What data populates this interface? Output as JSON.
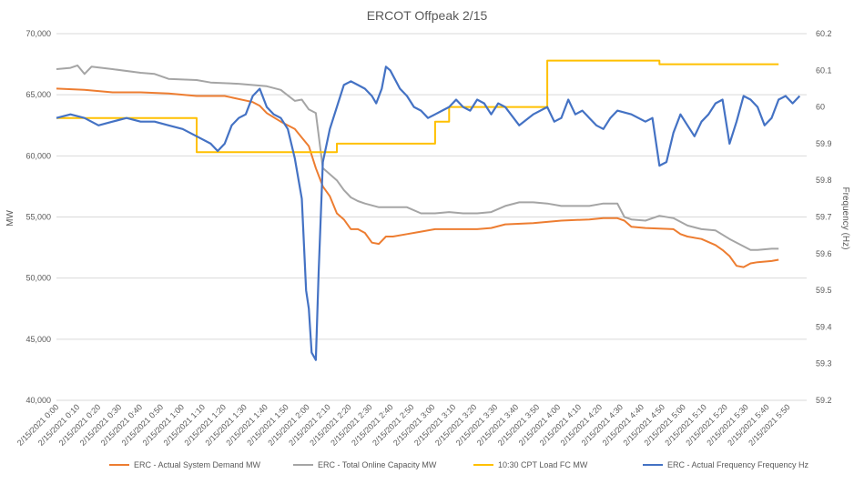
{
  "chart_data": {
    "type": "line",
    "title": "ERCOT Offpeak 2/15",
    "ylabel": "MW",
    "y2label": "Frequency (Hz)",
    "ylim": [
      40000,
      70000
    ],
    "y2lim": [
      59.2,
      60.2
    ],
    "grid": true,
    "legend_position": "bottom",
    "y_ticks": [
      "40,000",
      "45,000",
      "50,000",
      "55,000",
      "60,000",
      "65,000",
      "70,000"
    ],
    "y2_ticks": [
      "59.2",
      "59.3",
      "59.4",
      "59.5",
      "59.6",
      "59.7",
      "59.8",
      "59.9",
      "60",
      "60.1",
      "60.2"
    ],
    "categories": [
      "2/15/2021 0:00",
      "2/15/2021 0:10",
      "2/15/2021 0:20",
      "2/15/2021 0:30",
      "2/15/2021 0:40",
      "2/15/2021 0:50",
      "2/15/2021 1:00",
      "2/15/2021 1:10",
      "2/15/2021 1:20",
      "2/15/2021 1:30",
      "2/15/2021 1:40",
      "2/15/2021 1:50",
      "2/15/2021 2:00",
      "2/15/2021 2:10",
      "2/15/2021 2:20",
      "2/15/2021 2:30",
      "2/15/2021 2:40",
      "2/15/2021 2:50",
      "2/15/2021 3:00",
      "2/15/2021 3:10",
      "2/15/2021 3:20",
      "2/15/2021 3:30",
      "2/15/2021 3:40",
      "2/15/2021 3:50",
      "2/15/2021 4:00",
      "2/15/2021 4:10",
      "2/15/2021 4:20",
      "2/15/2021 4:30",
      "2/15/2021 4:40",
      "2/15/2021 4:50",
      "2/15/2021 5:00",
      "2/15/2021 5:10",
      "2/15/2021 5:20",
      "2/15/2021 5:30",
      "2/15/2021 5:40",
      "2/15/2021 5:50"
    ],
    "x_max_minutes": 359,
    "series": [
      {
        "name": "ERC - Actual System Demand MW",
        "axis": "left",
        "color": "#ED7D31",
        "points": [
          [
            0,
            65500
          ],
          [
            20,
            65400
          ],
          [
            40,
            65200
          ],
          [
            60,
            65200
          ],
          [
            80,
            65100
          ],
          [
            100,
            64900
          ],
          [
            120,
            64900
          ],
          [
            140,
            64400
          ],
          [
            145,
            64100
          ],
          [
            150,
            63500
          ],
          [
            160,
            62800
          ],
          [
            170,
            62200
          ],
          [
            175,
            61500
          ],
          [
            180,
            60800
          ],
          [
            185,
            59000
          ],
          [
            190,
            57500
          ],
          [
            195,
            56700
          ],
          [
            200,
            55300
          ],
          [
            205,
            54800
          ],
          [
            210,
            54000
          ],
          [
            215,
            54000
          ],
          [
            220,
            53700
          ],
          [
            225,
            52900
          ],
          [
            230,
            52800
          ],
          [
            235,
            53400
          ],
          [
            240,
            53400
          ],
          [
            250,
            53600
          ],
          [
            260,
            53800
          ],
          [
            270,
            54000
          ],
          [
            280,
            54000
          ],
          [
            300,
            54000
          ],
          [
            310,
            54100
          ],
          [
            320,
            54400
          ],
          [
            340,
            54500
          ],
          [
            360,
            54700
          ],
          [
            380,
            54800
          ],
          [
            390,
            54900
          ],
          [
            400,
            54900
          ],
          [
            405,
            54700
          ],
          [
            410,
            54200
          ],
          [
            420,
            54100
          ],
          [
            440,
            54000
          ],
          [
            445,
            53600
          ],
          [
            450,
            53400
          ],
          [
            460,
            53200
          ],
          [
            470,
            52700
          ],
          [
            475,
            52300
          ],
          [
            480,
            51800
          ],
          [
            485,
            51000
          ],
          [
            490,
            50900
          ],
          [
            495,
            51200
          ],
          [
            500,
            51300
          ],
          [
            510,
            51400
          ],
          [
            515,
            51500
          ]
        ]
      },
      {
        "name": "ERC - Total Online Capacity MW",
        "axis": "left",
        "color": "#A5A5A5",
        "points": [
          [
            0,
            67100
          ],
          [
            10,
            67200
          ],
          [
            15,
            67400
          ],
          [
            20,
            66700
          ],
          [
            25,
            67300
          ],
          [
            40,
            67100
          ],
          [
            60,
            66800
          ],
          [
            70,
            66700
          ],
          [
            80,
            66300
          ],
          [
            100,
            66200
          ],
          [
            110,
            66000
          ],
          [
            130,
            65900
          ],
          [
            150,
            65700
          ],
          [
            160,
            65400
          ],
          [
            170,
            64500
          ],
          [
            175,
            64600
          ],
          [
            180,
            63800
          ],
          [
            185,
            63500
          ],
          [
            190,
            59000
          ],
          [
            195,
            58500
          ],
          [
            200,
            58000
          ],
          [
            205,
            57200
          ],
          [
            210,
            56600
          ],
          [
            215,
            56300
          ],
          [
            220,
            56100
          ],
          [
            230,
            55800
          ],
          [
            240,
            55800
          ],
          [
            250,
            55800
          ],
          [
            260,
            55300
          ],
          [
            270,
            55300
          ],
          [
            280,
            55400
          ],
          [
            290,
            55300
          ],
          [
            300,
            55300
          ],
          [
            310,
            55400
          ],
          [
            320,
            55900
          ],
          [
            330,
            56200
          ],
          [
            340,
            56200
          ],
          [
            350,
            56100
          ],
          [
            360,
            55900
          ],
          [
            370,
            55900
          ],
          [
            380,
            55900
          ],
          [
            390,
            56100
          ],
          [
            400,
            56100
          ],
          [
            405,
            55000
          ],
          [
            410,
            54800
          ],
          [
            420,
            54700
          ],
          [
            430,
            55100
          ],
          [
            440,
            54900
          ],
          [
            450,
            54300
          ],
          [
            460,
            54000
          ],
          [
            470,
            53900
          ],
          [
            480,
            53200
          ],
          [
            490,
            52600
          ],
          [
            495,
            52300
          ],
          [
            500,
            52300
          ],
          [
            510,
            52400
          ],
          [
            515,
            52400
          ]
        ]
      },
      {
        "name": "10:30 CPT Load FC MW",
        "axis": "left",
        "color": "#FFC000",
        "points": [
          [
            0,
            63100
          ],
          [
            100,
            63100
          ],
          [
            100,
            60300
          ],
          [
            200,
            60300
          ],
          [
            200,
            61000
          ],
          [
            240,
            61000
          ],
          [
            270,
            61000
          ],
          [
            270,
            62800
          ],
          [
            280,
            62800
          ],
          [
            280,
            64000
          ],
          [
            350,
            64000
          ],
          [
            350,
            67800
          ],
          [
            430,
            67800
          ],
          [
            430,
            67500
          ],
          [
            515,
            67500
          ]
        ]
      },
      {
        "name": "ERC - Actual Frequency Frequency Hz",
        "axis": "right",
        "color": "#4472C4",
        "points": [
          [
            0,
            59.97
          ],
          [
            10,
            59.98
          ],
          [
            20,
            59.97
          ],
          [
            30,
            59.95
          ],
          [
            40,
            59.96
          ],
          [
            50,
            59.97
          ],
          [
            60,
            59.96
          ],
          [
            70,
            59.96
          ],
          [
            80,
            59.95
          ],
          [
            90,
            59.94
          ],
          [
            100,
            59.92
          ],
          [
            110,
            59.9
          ],
          [
            115,
            59.88
          ],
          [
            120,
            59.9
          ],
          [
            125,
            59.95
          ],
          [
            130,
            59.97
          ],
          [
            135,
            59.98
          ],
          [
            140,
            60.03
          ],
          [
            145,
            60.05
          ],
          [
            150,
            60.0
          ],
          [
            155,
            59.98
          ],
          [
            160,
            59.97
          ],
          [
            165,
            59.94
          ],
          [
            170,
            59.86
          ],
          [
            175,
            59.75
          ],
          [
            178,
            59.5
          ],
          [
            180,
            59.45
          ],
          [
            182,
            59.33
          ],
          [
            185,
            59.31
          ],
          [
            187,
            59.55
          ],
          [
            190,
            59.85
          ],
          [
            195,
            59.94
          ],
          [
            200,
            60.0
          ],
          [
            205,
            60.06
          ],
          [
            210,
            60.07
          ],
          [
            215,
            60.06
          ],
          [
            220,
            60.05
          ],
          [
            225,
            60.03
          ],
          [
            228,
            60.01
          ],
          [
            232,
            60.05
          ],
          [
            235,
            60.11
          ],
          [
            238,
            60.1
          ],
          [
            245,
            60.05
          ],
          [
            250,
            60.03
          ],
          [
            255,
            60.0
          ],
          [
            260,
            59.99
          ],
          [
            265,
            59.97
          ],
          [
            270,
            59.98
          ],
          [
            275,
            59.99
          ],
          [
            280,
            60.0
          ],
          [
            285,
            60.02
          ],
          [
            290,
            60.0
          ],
          [
            295,
            59.99
          ],
          [
            300,
            60.02
          ],
          [
            305,
            60.01
          ],
          [
            310,
            59.98
          ],
          [
            315,
            60.01
          ],
          [
            320,
            60.0
          ],
          [
            330,
            59.95
          ],
          [
            340,
            59.98
          ],
          [
            350,
            60.0
          ],
          [
            355,
            59.96
          ],
          [
            360,
            59.97
          ],
          [
            365,
            60.02
          ],
          [
            370,
            59.98
          ],
          [
            375,
            59.99
          ],
          [
            380,
            59.97
          ],
          [
            385,
            59.95
          ],
          [
            390,
            59.94
          ],
          [
            395,
            59.97
          ],
          [
            400,
            59.99
          ],
          [
            410,
            59.98
          ],
          [
            420,
            59.96
          ],
          [
            425,
            59.97
          ],
          [
            430,
            59.84
          ],
          [
            435,
            59.85
          ],
          [
            440,
            59.93
          ],
          [
            445,
            59.98
          ],
          [
            450,
            59.95
          ],
          [
            455,
            59.92
          ],
          [
            460,
            59.96
          ],
          [
            465,
            59.98
          ],
          [
            470,
            60.01
          ],
          [
            475,
            60.02
          ],
          [
            480,
            59.9
          ],
          [
            485,
            59.96
          ],
          [
            490,
            60.03
          ],
          [
            495,
            60.02
          ],
          [
            500,
            60.0
          ],
          [
            505,
            59.95
          ],
          [
            510,
            59.97
          ],
          [
            515,
            60.02
          ],
          [
            520,
            60.03
          ],
          [
            525,
            60.01
          ],
          [
            530,
            60.03
          ]
        ]
      }
    ]
  }
}
